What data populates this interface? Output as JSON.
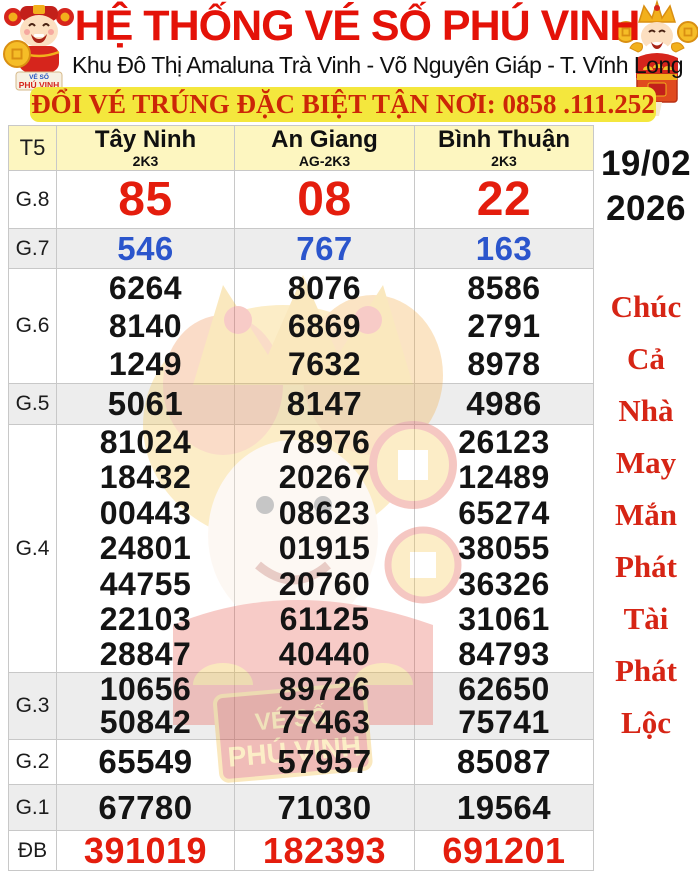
{
  "colors": {
    "title_red": "#e41208",
    "banner_bg": "#f4e73d",
    "banner_text": "#cc2607",
    "header_row_bg": "#fdf6c0",
    "alt_row_bg": "#ededed",
    "border": "#c8c8c8",
    "red_number": "#e41d0d",
    "blue_number": "#2b55cc",
    "black_number": "#141414",
    "wish_red": "#d62515",
    "date_black": "#111111"
  },
  "header": {
    "title": "HỆ THỐNG VÉ SỐ PHÚ VINH",
    "address": "Khu Đô Thị Amaluna Trà Vinh - Võ Nguyên Giáp - T. Vĩnh Long",
    "banner": "ĐỔI VÉ TRÚNG ĐẶC BIỆT TẬN NƠI: 0858 .111.252",
    "mascot_banner": {
      "line1": "VÉ SỐ",
      "line2": "PHÚ VINH"
    }
  },
  "table": {
    "day_label": "T5",
    "columns": [
      {
        "name": "Tây Ninh",
        "code": "2K3"
      },
      {
        "name": "An Giang",
        "code": "AG-2K3"
      },
      {
        "name": "Bình Thuận",
        "code": "2K3"
      }
    ],
    "rows": [
      {
        "label": "G.8",
        "color": "red",
        "cells": [
          [
            "85"
          ],
          [
            "08"
          ],
          [
            "22"
          ]
        ]
      },
      {
        "label": "G.7",
        "color": "blue",
        "cells": [
          [
            "546"
          ],
          [
            "767"
          ],
          [
            "163"
          ]
        ]
      },
      {
        "label": "G.6",
        "color": "black",
        "cells": [
          [
            "6264",
            "8140",
            "1249"
          ],
          [
            "8076",
            "6869",
            "7632"
          ],
          [
            "8586",
            "2791",
            "8978"
          ]
        ]
      },
      {
        "label": "G.5",
        "color": "black",
        "cells": [
          [
            "5061"
          ],
          [
            "8147"
          ],
          [
            "4986"
          ]
        ]
      },
      {
        "label": "G.4",
        "color": "black",
        "cells": [
          [
            "81024",
            "18432",
            "00443",
            "24801",
            "44755",
            "22103",
            "28847"
          ],
          [
            "78976",
            "20267",
            "08623",
            "01915",
            "20760",
            "61125",
            "40440"
          ],
          [
            "26123",
            "12489",
            "65274",
            "38055",
            "36326",
            "31061",
            "84793"
          ]
        ]
      },
      {
        "label": "G.3",
        "color": "black",
        "cells": [
          [
            "10656",
            "50842"
          ],
          [
            "89726",
            "77463"
          ],
          [
            "62650",
            "75741"
          ]
        ]
      },
      {
        "label": "G.2",
        "color": "black",
        "cells": [
          [
            "65549"
          ],
          [
            "57957"
          ],
          [
            "85087"
          ]
        ]
      },
      {
        "label": "G.1",
        "color": "black",
        "cells": [
          [
            "67780"
          ],
          [
            "71030"
          ],
          [
            "19564"
          ]
        ]
      },
      {
        "label": "ĐB",
        "color": "red",
        "cells": [
          [
            "391019"
          ],
          [
            "182393"
          ],
          [
            "691201"
          ]
        ]
      }
    ]
  },
  "sidebar": {
    "date_line1": "19/02",
    "date_line2": "2026",
    "wishes": [
      "Chúc",
      "Cả",
      "Nhà",
      "May",
      "Mắn",
      "Phát",
      "Tài",
      "Phát",
      "Lộc"
    ]
  },
  "watermark": {
    "line1": "VÉ SỐ",
    "line2": "PHÚ VINH"
  }
}
